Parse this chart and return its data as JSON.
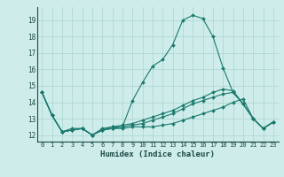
{
  "title": "",
  "xlabel": "Humidex (Indice chaleur)",
  "ylabel": "",
  "bg_color": "#ceecea",
  "line_color": "#1a7a6e",
  "grid_color": "#b0d8d4",
  "x_ticks": [
    0,
    1,
    2,
    3,
    4,
    5,
    6,
    7,
    8,
    9,
    10,
    11,
    12,
    13,
    14,
    15,
    16,
    17,
    18,
    19,
    20,
    21,
    22,
    23
  ],
  "y_ticks": [
    12,
    13,
    14,
    15,
    16,
    17,
    18,
    19
  ],
  "ylim": [
    11.6,
    19.8
  ],
  "xlim": [
    -0.5,
    23.5
  ],
  "series": [
    [
      14.6,
      13.2,
      12.2,
      12.4,
      12.4,
      12.0,
      12.4,
      12.5,
      12.5,
      14.1,
      15.2,
      16.2,
      16.6,
      17.5,
      19.0,
      19.3,
      19.1,
      18.0,
      16.1,
      14.6,
      13.9,
      13.0,
      12.4,
      12.8
    ],
    [
      14.6,
      13.2,
      12.2,
      12.3,
      12.4,
      12.0,
      12.3,
      12.4,
      12.4,
      12.5,
      12.5,
      12.5,
      12.6,
      12.7,
      12.9,
      13.1,
      13.3,
      13.5,
      13.7,
      14.0,
      14.2,
      13.0,
      12.4,
      12.8
    ],
    [
      14.6,
      13.2,
      12.2,
      12.3,
      12.4,
      12.0,
      12.3,
      12.4,
      12.5,
      12.6,
      12.7,
      12.9,
      13.1,
      13.3,
      13.6,
      13.9,
      14.1,
      14.3,
      14.5,
      14.6,
      13.9,
      13.0,
      12.4,
      12.8
    ],
    [
      14.6,
      13.2,
      12.2,
      12.3,
      12.4,
      12.0,
      12.3,
      12.5,
      12.6,
      12.7,
      12.9,
      13.1,
      13.3,
      13.5,
      13.8,
      14.1,
      14.3,
      14.6,
      14.8,
      14.7,
      13.9,
      13.0,
      12.4,
      12.8
    ]
  ]
}
